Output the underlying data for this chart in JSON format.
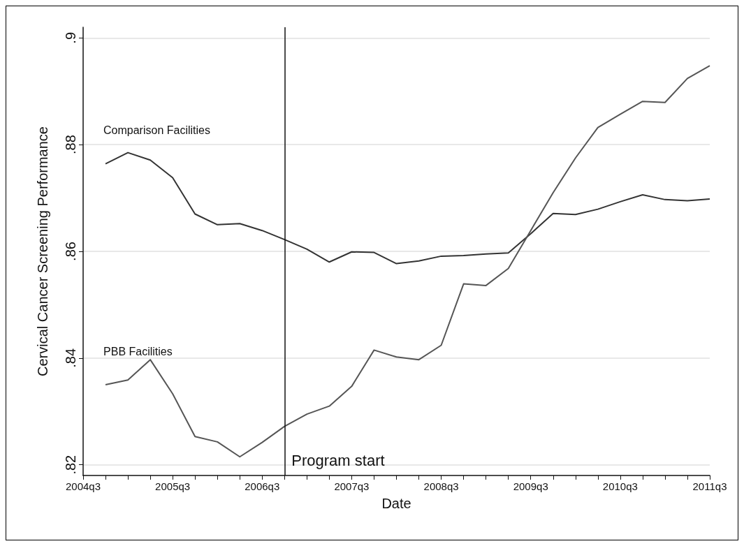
{
  "chart_data": {
    "type": "line",
    "xlabel": "Date",
    "ylabel": "Cervical Cancer Screening Performance",
    "categories": [
      "2004q3",
      null,
      null,
      null,
      "2005q3",
      null,
      null,
      null,
      "2006q3",
      null,
      null,
      null,
      "2007q3",
      null,
      null,
      null,
      "2008q3",
      null,
      null,
      null,
      "2009q3",
      null,
      null,
      null,
      "2010q3",
      null,
      null,
      null,
      "2011q3"
    ],
    "series": [
      {
        "name": "Comparison Facilities",
        "color": "#333333",
        "values": [
          null,
          0.8764,
          0.8785,
          0.8771,
          0.8738,
          0.867,
          0.865,
          0.8652,
          0.8639,
          0.8622,
          0.8604,
          0.858,
          0.8599,
          0.8598,
          0.8577,
          0.8582,
          0.8591,
          0.8592,
          0.8595,
          0.8597,
          0.8633,
          0.8671,
          0.8669,
          0.8679,
          0.8693,
          0.8706,
          0.8697,
          0.8695,
          0.8698
        ]
      },
      {
        "name": "PBB Facilities",
        "color": "#555555",
        "values": [
          null,
          0.835,
          0.8359,
          0.8397,
          0.8333,
          0.8253,
          0.8243,
          0.8215,
          0.8242,
          0.8272,
          0.8295,
          0.831,
          0.8347,
          0.8415,
          0.8402,
          0.8397,
          0.8424,
          0.8539,
          0.8536,
          0.8568,
          0.8639,
          0.871,
          0.8775,
          0.8832,
          0.8857,
          0.8881,
          0.8879,
          0.8924,
          0.8948
        ]
      }
    ],
    "ylim": [
      0.818,
      0.902
    ],
    "yticks": [
      {
        "value": 0.82,
        "label": ".82"
      },
      {
        "value": 0.84,
        "label": ".84"
      },
      {
        "value": 0.86,
        "label": ".86"
      },
      {
        "value": 0.88,
        "label": ".88"
      },
      {
        "value": 0.9,
        "label": ".9"
      }
    ],
    "annotations": [
      "Program start"
    ],
    "grid": "y",
    "marker": "none",
    "line_style": "solid"
  }
}
